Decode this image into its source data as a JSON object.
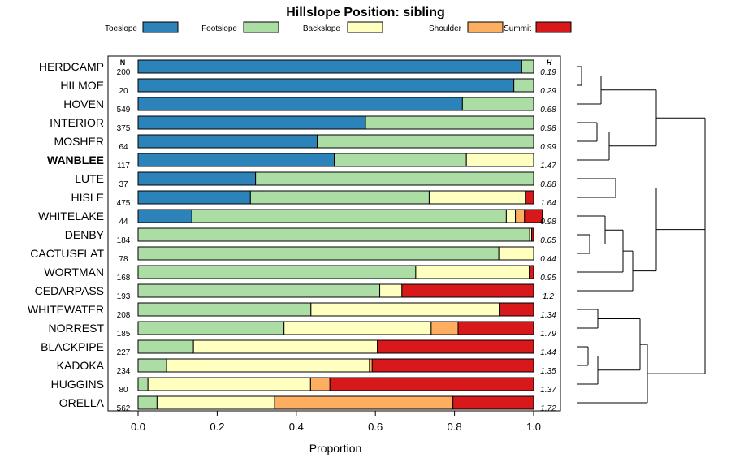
{
  "chart_data": {
    "type": "bar",
    "orientation": "horizontal",
    "stacked": true,
    "title": "Hillslope Position: sibling",
    "xlabel": "Proportion",
    "ylabel": "",
    "xlim": [
      0,
      1
    ],
    "x_ticks": [
      "0.0",
      "0.2",
      "0.4",
      "0.6",
      "0.8",
      "1.0"
    ],
    "n_header": "N",
    "h_header": "H",
    "highlighted_category": "WANBLEE",
    "legend": [
      {
        "name": "Toeslope",
        "color": "#2B83BA"
      },
      {
        "name": "Footslope",
        "color": "#ABDDA4"
      },
      {
        "name": "Backslope",
        "color": "#FFFFBF"
      },
      {
        "name": "Shoulder",
        "color": "#FDAE61"
      },
      {
        "name": "Summit",
        "color": "#D7191C"
      }
    ],
    "categories": [
      "HERDCAMP",
      "HILMOE",
      "HOVEN",
      "INTERIOR",
      "MOSHER",
      "WANBLEE",
      "LUTE",
      "HISLE",
      "WHITELAKE",
      "DENBY",
      "CACTUSFLAT",
      "WORTMAN",
      "CEDARPASS",
      "WHITEWATER",
      "NORREST",
      "BLACKPIPE",
      "KADOKA",
      "HUGGINS",
      "ORELLA"
    ],
    "n": [
      "200",
      "20",
      "549",
      "375",
      "64",
      "117",
      "37",
      "475",
      "44",
      "184",
      "78",
      "168",
      "193",
      "208",
      "185",
      "227",
      "234",
      "80",
      "562"
    ],
    "h": [
      "0.19",
      "0.29",
      "0.68",
      "0.98",
      "0.99",
      "1.47",
      "0.88",
      "1.64",
      "0.98",
      "0.05",
      "0.44",
      "0.95",
      "1.2",
      "1.34",
      "1.79",
      "1.44",
      "1.35",
      "1.37",
      "1.72"
    ],
    "series": [
      {
        "name": "Toeslope",
        "values": [
          0.97,
          0.95,
          0.82,
          0.575,
          0.453,
          0.496,
          0.297,
          0.284,
          0.136,
          0,
          0,
          0,
          0,
          0,
          0,
          0,
          0,
          0,
          0
        ]
      },
      {
        "name": "Footslope",
        "values": [
          0.03,
          0.05,
          0.18,
          0.425,
          0.547,
          0.334,
          0.703,
          0.452,
          0.795,
          0.99,
          0.912,
          0.702,
          0.611,
          0.437,
          0.369,
          0.14,
          0.072,
          0.025,
          0.048
        ]
      },
      {
        "name": "Backslope",
        "values": [
          0,
          0,
          0,
          0,
          0,
          0.17,
          0,
          0.243,
          0.023,
          0.005,
          0.088,
          0.287,
          0.056,
          0.476,
          0.372,
          0.465,
          0.513,
          0.411,
          0.297
        ]
      },
      {
        "name": "Shoulder",
        "values": [
          0,
          0,
          0,
          0,
          0,
          0,
          0,
          0,
          0.023,
          0,
          0,
          0,
          0,
          0,
          0.068,
          0,
          0.007,
          0.049,
          0.451
        ]
      },
      {
        "name": "Summit",
        "values": [
          0,
          0,
          0,
          0,
          0,
          0,
          0,
          0.021,
          0.045,
          0.005,
          0,
          0.011,
          0.333,
          0.087,
          0.191,
          0.395,
          0.408,
          0.515,
          0.204
        ]
      }
    ]
  }
}
